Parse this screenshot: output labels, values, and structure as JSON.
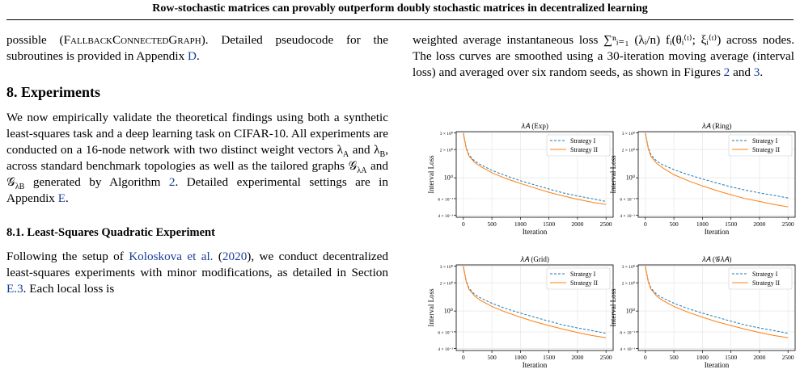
{
  "header": {
    "title": "Row-stochastic matrices can provably outperform doubly stochastic matrices in decentralized learning"
  },
  "left": {
    "intro": [
      "possible (",
      "FallbackConnectedGraph",
      "). Detailed pseudocode for the subroutines is provided in Appendix ",
      "D",
      "."
    ],
    "section_title": "8. Experiments",
    "section_para": [
      "We now empirically validate the theoretical findings using both a synthetic least-squares task and a deep learning task on CIFAR-10. All experiments are conducted on a 16-node network with two distinct weight vectors λ",
      "A",
      " and λ",
      "B",
      ", across standard benchmark topologies as well as the tailored graphs 𝒢",
      "λA",
      " and 𝒢",
      "λB",
      " generated by Algorithm ",
      "2",
      ". Detailed experimental settings are in Appendix ",
      "E",
      "."
    ],
    "subsection_title": "8.1. Least-Squares Quadratic Experiment",
    "subsection_para": [
      "Following the setup of ",
      "Koloskova et al.",
      "(",
      "2020",
      "), we conduct decentralized least-squares experiments with minor modifications, as detailed in Section ",
      "E.3",
      ". Each local loss is"
    ]
  },
  "right": {
    "para": [
      "weighted average instantaneous loss ∑ⁿᵢ₌₁ (λᵢ/n) fᵢ(θᵢ⁽ᵗ⁾; ξᵢ⁽ᵗ⁾) across nodes. The loss curves are smoothed using a 30-iteration moving average (interval loss) and averaged over six random seeds, as shown in Figures ",
      "2",
      " and ",
      "3",
      "."
    ]
  },
  "chart_data": [
    {
      "type": "line",
      "title": "𝜆𝐴 (Exp)",
      "xlabel": "Iteration",
      "ylabel": "Interval Loss",
      "yscale": "log",
      "grid": true,
      "legend": "upper right",
      "x": [
        0,
        50,
        100,
        200,
        300,
        500,
        750,
        1000,
        1250,
        1500,
        1750,
        2000,
        2250,
        2500
      ],
      "series": [
        {
          "name": "Strategy I",
          "color": "#1f77b4",
          "dashed": true,
          "values": [
            3.0,
            2.1,
            1.75,
            1.5,
            1.38,
            1.2,
            1.05,
            0.93,
            0.84,
            0.76,
            0.69,
            0.64,
            0.6,
            0.56
          ]
        },
        {
          "name": "Strategy II",
          "color": "#ff7f0e",
          "dashed": false,
          "values": [
            3.0,
            2.05,
            1.7,
            1.45,
            1.32,
            1.13,
            0.98,
            0.87,
            0.78,
            0.7,
            0.64,
            0.59,
            0.55,
            0.52
          ]
        }
      ],
      "xlim": [
        -125,
        2625
      ],
      "ylim": [
        0.38,
        3.1
      ],
      "xticks": [
        0,
        500,
        1000,
        1500,
        2000,
        2500
      ],
      "yticks": [
        {
          "value": 3,
          "label": "3 × 10⁰"
        },
        {
          "value": 2,
          "label": "2 × 10⁰"
        },
        {
          "value": 1,
          "label": "10⁰"
        },
        {
          "value": 0.6,
          "label": "6 × 10⁻¹"
        },
        {
          "value": 0.4,
          "label": "4 × 10⁻¹"
        }
      ]
    },
    {
      "type": "line",
      "title": "𝜆𝐴 (Ring)",
      "xlabel": "Iteration",
      "ylabel": "Interval Loss",
      "yscale": "log",
      "grid": true,
      "legend": "upper right",
      "x": [
        0,
        50,
        100,
        200,
        300,
        500,
        750,
        1000,
        1250,
        1500,
        1750,
        2000,
        2250,
        2500
      ],
      "series": [
        {
          "name": "Strategy I",
          "color": "#1f77b4",
          "dashed": true,
          "values": [
            3.0,
            2.1,
            1.75,
            1.5,
            1.38,
            1.22,
            1.08,
            0.97,
            0.88,
            0.8,
            0.74,
            0.69,
            0.65,
            0.61
          ]
        },
        {
          "name": "Strategy II",
          "color": "#ff7f0e",
          "dashed": false,
          "values": [
            3.0,
            2.05,
            1.68,
            1.42,
            1.28,
            1.08,
            0.93,
            0.82,
            0.73,
            0.66,
            0.6,
            0.56,
            0.52,
            0.49
          ]
        }
      ],
      "xlim": [
        -125,
        2625
      ],
      "ylim": [
        0.38,
        3.1
      ],
      "xticks": [
        0,
        500,
        1000,
        1500,
        2000,
        2500
      ],
      "yticks": [
        {
          "value": 3,
          "label": "3 × 10⁰"
        },
        {
          "value": 2,
          "label": "2 × 10⁰"
        },
        {
          "value": 1,
          "label": "10⁰"
        },
        {
          "value": 0.6,
          "label": "6 × 10⁻¹"
        },
        {
          "value": 0.4,
          "label": "4 × 10⁻¹"
        }
      ]
    },
    {
      "type": "line",
      "title": "𝜆𝐴 (Grid)",
      "xlabel": "Iteration",
      "ylabel": "Interval Loss",
      "yscale": "log",
      "grid": true,
      "legend": "upper right",
      "x": [
        0,
        50,
        100,
        200,
        300,
        500,
        750,
        1000,
        1250,
        1500,
        1750,
        2000,
        2250,
        2500
      ],
      "series": [
        {
          "name": "Strategy I",
          "color": "#1f77b4",
          "dashed": true,
          "values": [
            3.0,
            2.1,
            1.75,
            1.5,
            1.38,
            1.21,
            1.06,
            0.95,
            0.86,
            0.78,
            0.71,
            0.66,
            0.62,
            0.58
          ]
        },
        {
          "name": "Strategy II",
          "color": "#ff7f0e",
          "dashed": false,
          "values": [
            3.0,
            2.05,
            1.7,
            1.44,
            1.3,
            1.12,
            0.97,
            0.86,
            0.77,
            0.7,
            0.64,
            0.59,
            0.55,
            0.52
          ]
        }
      ],
      "xlim": [
        -125,
        2625
      ],
      "ylim": [
        0.38,
        3.1
      ],
      "xticks": [
        0,
        500,
        1000,
        1500,
        2000,
        2500
      ],
      "yticks": [
        {
          "value": 3,
          "label": "3 × 10⁰"
        },
        {
          "value": 2,
          "label": "2 × 10⁰"
        },
        {
          "value": 1,
          "label": "10⁰"
        },
        {
          "value": 0.6,
          "label": "6 × 10⁻¹"
        },
        {
          "value": 0.4,
          "label": "4 × 10⁻¹"
        }
      ]
    },
    {
      "type": "line",
      "title": "𝜆𝐴 (𝒢𝜆𝐴)",
      "xlabel": "Iteration",
      "ylabel": "Interval Loss",
      "yscale": "log",
      "grid": true,
      "legend": "upper right",
      "x": [
        0,
        50,
        100,
        200,
        300,
        500,
        750,
        1000,
        1250,
        1500,
        1750,
        2000,
        2250,
        2500
      ],
      "series": [
        {
          "name": "Strategy I",
          "color": "#1f77b4",
          "dashed": true,
          "values": [
            3.0,
            2.1,
            1.75,
            1.5,
            1.38,
            1.21,
            1.06,
            0.95,
            0.86,
            0.78,
            0.71,
            0.66,
            0.62,
            0.58
          ]
        },
        {
          "name": "Strategy II",
          "color": "#ff7f0e",
          "dashed": false,
          "values": [
            3.0,
            2.05,
            1.7,
            1.44,
            1.3,
            1.12,
            0.97,
            0.86,
            0.77,
            0.7,
            0.64,
            0.59,
            0.55,
            0.52
          ]
        }
      ],
      "xlim": [
        -125,
        2625
      ],
      "ylim": [
        0.38,
        3.1
      ],
      "xticks": [
        0,
        500,
        1000,
        1500,
        2000,
        2500
      ],
      "yticks": [
        {
          "value": 3,
          "label": "3 × 10⁰"
        },
        {
          "value": 2,
          "label": "2 × 10⁰"
        },
        {
          "value": 1,
          "label": "10⁰"
        },
        {
          "value": 0.6,
          "label": "6 × 10⁻¹"
        },
        {
          "value": 0.4,
          "label": "4 × 10⁻¹"
        }
      ]
    }
  ]
}
